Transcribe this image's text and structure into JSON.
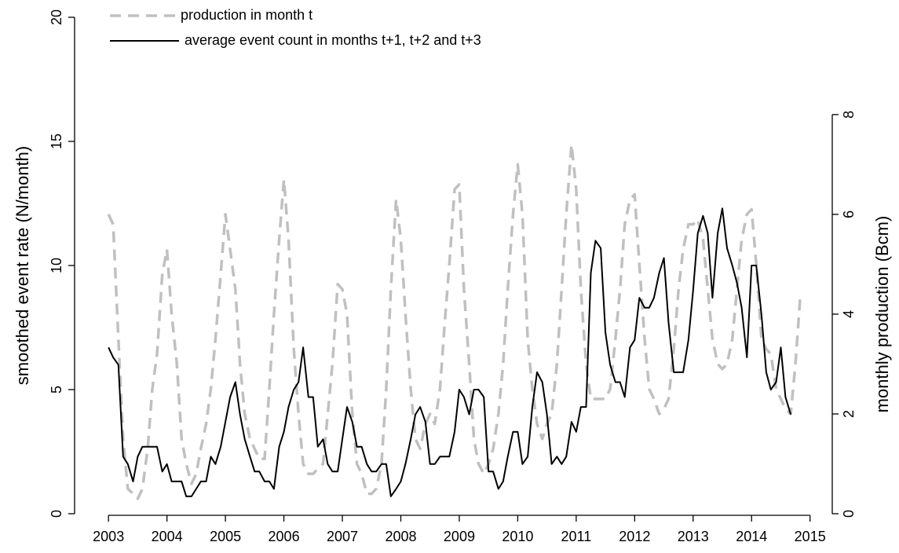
{
  "chart_data": {
    "type": "line",
    "y_label": "smoothed event rate (N/month)",
    "y2_label": "monthly production (Bcm)",
    "legend": "top-left",
    "x": [
      2003,
      2003.08,
      2003.17,
      2003.25,
      2003.33,
      2003.42,
      2003.5,
      2003.58,
      2003.67,
      2003.75,
      2003.83,
      2003.92,
      2004,
      2004.08,
      2004.17,
      2004.25,
      2004.33,
      2004.42,
      2004.5,
      2004.58,
      2004.67,
      2004.75,
      2004.83,
      2004.92,
      2005,
      2005.08,
      2005.17,
      2005.25,
      2005.33,
      2005.42,
      2005.5,
      2005.58,
      2005.67,
      2005.75,
      2005.83,
      2005.92,
      2006,
      2006.08,
      2006.17,
      2006.25,
      2006.33,
      2006.42,
      2006.5,
      2006.58,
      2006.67,
      2006.75,
      2006.83,
      2006.92,
      2007,
      2007.08,
      2007.17,
      2007.25,
      2007.33,
      2007.42,
      2007.5,
      2007.58,
      2007.67,
      2007.75,
      2007.83,
      2007.92,
      2008,
      2008.08,
      2008.17,
      2008.25,
      2008.33,
      2008.42,
      2008.5,
      2008.58,
      2008.67,
      2008.75,
      2008.83,
      2008.92,
      2009,
      2009.08,
      2009.17,
      2009.25,
      2009.33,
      2009.42,
      2009.5,
      2009.58,
      2009.67,
      2009.75,
      2009.83,
      2009.92,
      2010,
      2010.08,
      2010.17,
      2010.25,
      2010.33,
      2010.42,
      2010.5,
      2010.58,
      2010.67,
      2010.75,
      2010.83,
      2010.92,
      2011,
      2011.08,
      2011.17,
      2011.25,
      2011.33,
      2011.42,
      2011.5,
      2011.58,
      2011.67,
      2011.75,
      2011.83,
      2011.92,
      2012,
      2012.08,
      2012.17,
      2012.25,
      2012.33,
      2012.42,
      2012.5,
      2012.58,
      2012.67,
      2012.75,
      2012.83,
      2012.92,
      2013,
      2013.08,
      2013.17,
      2013.25,
      2013.33,
      2013.42,
      2013.5,
      2013.58,
      2013.67,
      2013.75,
      2013.83,
      2013.92,
      2014,
      2014.08,
      2014.17,
      2014.25,
      2014.33,
      2014.42,
      2014.5,
      2014.58,
      2014.67,
      2014.75,
      2014.83
    ],
    "series": [
      {
        "name": "production in month t",
        "color": "#c0c0c0",
        "dash": true,
        "axis": "y2",
        "values": [
          6,
          5.8,
          3.5,
          1.5,
          0.5,
          0.4,
          0.3,
          0.5,
          1.3,
          2.5,
          3.2,
          4.8,
          5.3,
          4,
          3,
          1.5,
          1,
          0.6,
          0.8,
          1.3,
          1.8,
          2.5,
          3.5,
          4.8,
          6,
          5.3,
          4.5,
          3,
          2,
          1.5,
          1.3,
          1.1,
          1.1,
          2.5,
          4,
          5.5,
          6.7,
          5.5,
          3.3,
          2,
          1,
          0.8,
          0.8,
          0.9,
          1,
          2,
          3,
          4.6,
          4.5,
          4,
          2,
          1,
          0.8,
          0.4,
          0.4,
          0.5,
          1,
          2.5,
          4.5,
          6.3,
          5.5,
          4,
          2.5,
          1.5,
          1.3,
          1.8,
          2,
          1.8,
          2.5,
          3.8,
          5,
          6.5,
          6.6,
          4.5,
          3,
          1.5,
          1,
          0.8,
          1,
          1.3,
          2,
          3,
          4.5,
          6,
          7,
          6,
          3.5,
          2.5,
          1.8,
          1.5,
          1.8,
          2,
          3,
          4.5,
          6,
          7.4,
          6.5,
          4.5,
          3,
          2.3,
          2.3,
          2.3,
          2.3,
          2.5,
          3.5,
          4.5,
          5.8,
          6.3,
          6.4,
          5,
          3.5,
          2.5,
          2.3,
          2,
          2.1,
          2.3,
          3.3,
          4.5,
          5.3,
          5.8,
          5.8,
          5.9,
          5.5,
          4.5,
          3.5,
          3,
          2.9,
          3,
          3.5,
          4.5,
          5.5,
          6,
          6.1,
          5,
          3.5,
          3.3,
          3.2,
          2.5,
          2.3,
          2.1,
          2,
          3,
          4.3
        ]
      },
      {
        "name": " average event count in months t+1, t+2 and t+3",
        "color": "#000000",
        "dash": false,
        "axis": "y",
        "values": [
          6.7,
          6.3,
          6,
          2.3,
          2,
          1.3,
          2.3,
          2.7,
          2.7,
          2.7,
          2.7,
          1.7,
          2,
          1.3,
          1.3,
          1.3,
          0.7,
          0.7,
          1,
          1.3,
          1.3,
          2.3,
          2,
          2.7,
          3.7,
          4.7,
          5.3,
          4,
          3,
          2.3,
          1.7,
          1.7,
          1.3,
          1.3,
          1,
          2.7,
          3.3,
          4.3,
          5,
          5.3,
          6.7,
          4.7,
          4.7,
          2.7,
          3,
          2,
          1.7,
          1.7,
          3,
          4.3,
          3.7,
          2.7,
          2.7,
          2,
          1.7,
          1.7,
          2,
          2,
          0.7,
          1,
          1.3,
          2,
          3,
          4,
          4.3,
          3.7,
          2,
          2,
          2.3,
          2.3,
          2.3,
          3.3,
          5,
          4.7,
          4,
          5,
          5,
          4.7,
          1.7,
          1.7,
          1,
          1.3,
          2.3,
          3.3,
          3.3,
          2,
          2.3,
          4.3,
          5.7,
          5.3,
          4,
          2,
          2.3,
          2,
          2.3,
          3.7,
          3.3,
          4.3,
          4.3,
          9.7,
          11,
          10.7,
          7.3,
          6,
          5.3,
          5.3,
          4.7,
          6.7,
          7,
          8.7,
          8.3,
          8.3,
          8.7,
          9.7,
          10.3,
          7.7,
          5.7,
          5.7,
          5.7,
          7,
          9,
          11.3,
          12,
          11.3,
          8.7,
          11.3,
          12.3,
          10.7,
          10,
          9.3,
          8.3,
          6.3,
          10,
          10,
          8,
          5.7,
          5,
          5.3,
          6.7,
          4.7,
          4,
          null,
          null
        ]
      }
    ],
    "xlim": [
      2002.42,
      2015.38
    ],
    "xticks": [
      2003,
      2004,
      2005,
      2006,
      2007,
      2008,
      2009,
      2010,
      2011,
      2012,
      2013,
      2014,
      2015
    ],
    "ylim": [
      0,
      20
    ],
    "yticks": [
      0,
      5,
      10,
      15,
      20
    ],
    "y2lim": [
      0,
      9.95
    ],
    "y2ticks": [
      0,
      2,
      4,
      6,
      8
    ]
  }
}
